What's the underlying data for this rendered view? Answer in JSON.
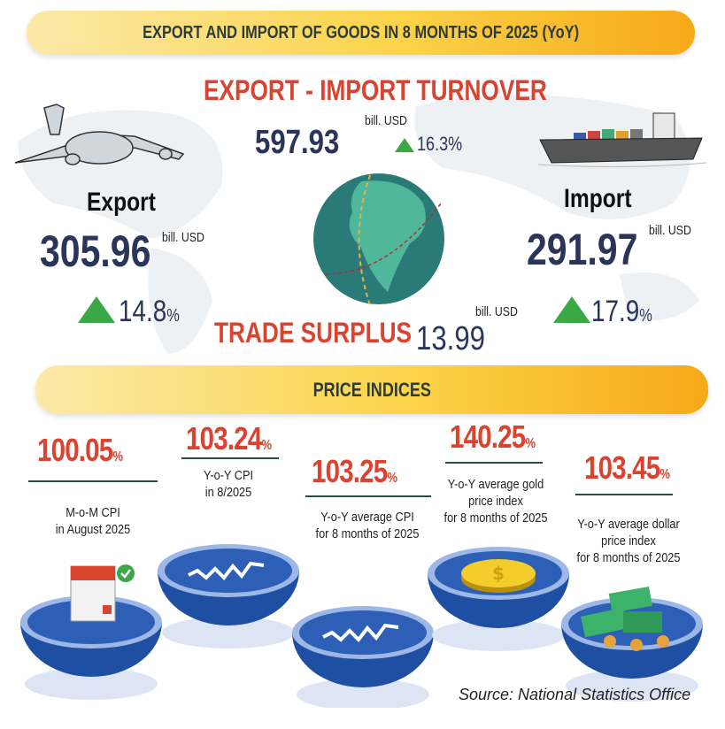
{
  "header": {
    "title": "EXPORT AND IMPORT OF GOODS IN 8 MONTHS OF 2025 (YoY)"
  },
  "turnover": {
    "title": "EXPORT - IMPORT TURNOVER",
    "value": "597.93",
    "unit": "bill. USD",
    "change": "16.3%",
    "trend": "up"
  },
  "export": {
    "label": "Export",
    "value": "305.96",
    "unit": "bill. USD",
    "change": "14.8",
    "change_unit": "%",
    "trend": "up"
  },
  "import": {
    "label": "Import",
    "value": "291.97",
    "unit": "bill. USD",
    "change": "17.9",
    "change_unit": "%",
    "trend": "up"
  },
  "surplus": {
    "label": "TRADE SURPLUS",
    "value": "13.99",
    "unit": "bill. USD"
  },
  "price_section": {
    "title": "PRICE INDICES"
  },
  "price_indices": [
    {
      "value": "100.05",
      "unit": "%",
      "desc1": "M-o-M CPI",
      "desc2": "in August 2025",
      "desc3": "",
      "icon": "calendar-icon"
    },
    {
      "value": "103.24",
      "unit": "%",
      "desc1": "Y-o-Y CPI",
      "desc2": "in 8/2025",
      "desc3": "",
      "icon": "chart-icon"
    },
    {
      "value": "103.25",
      "unit": "%",
      "desc1": "Y-o-Y average CPI",
      "desc2": "for 8 months of 2025",
      "desc3": "",
      "icon": "chart-icon"
    },
    {
      "value": "140.25",
      "unit": "%",
      "desc1": "Y-o-Y average gold",
      "desc2": "price index",
      "desc3": "for 8 months of 2025",
      "icon": "gold-coin-icon"
    },
    {
      "value": "103.45",
      "unit": "%",
      "desc1": "Y-o-Y average dollar",
      "desc2": "price index",
      "desc3": "for 8 months of 2025",
      "icon": "money-icon"
    }
  ],
  "source": "Source: National Statistics Office",
  "colors": {
    "accent_red": "#d9432f",
    "navy": "#2a3559",
    "up_green": "#3aa845",
    "bowl_blue": "#2c5fb5",
    "banner_yellow": "#fbd44a"
  }
}
